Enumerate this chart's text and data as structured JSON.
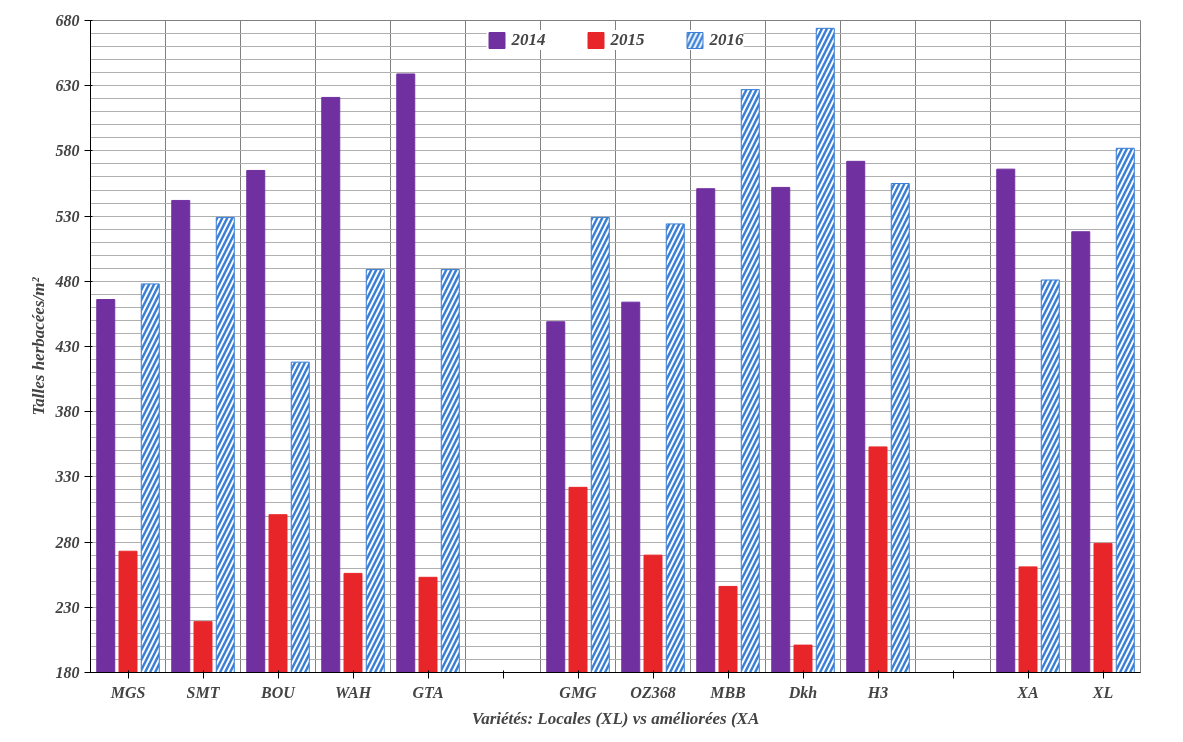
{
  "chart_data": {
    "type": "bar",
    "xlabel": "Variétés: Locales (XL) vs améliorées (XA",
    "ylabel": "Talles herbacées/m²",
    "categories": [
      "MGS",
      "SMT",
      "BOU",
      "WAH",
      "GTA",
      null,
      "GMG",
      "OZ368",
      "MBB",
      "Dkh",
      "H3",
      null,
      "XA",
      "XL"
    ],
    "series": [
      {
        "name": "2014",
        "color": "#7030a0",
        "values": [
          466,
          542,
          565,
          621,
          639,
          null,
          449,
          464,
          551,
          552,
          572,
          null,
          566,
          518
        ]
      },
      {
        "name": "2015",
        "color": "#e8262a",
        "values": [
          273,
          219,
          301,
          256,
          253,
          null,
          322,
          270,
          246,
          201,
          353,
          null,
          261,
          279
        ]
      },
      {
        "name": "2016",
        "color": "#3a7fd5",
        "values": [
          478,
          529,
          418,
          489,
          489,
          null,
          529,
          524,
          627,
          674,
          555,
          null,
          481,
          582
        ]
      }
    ],
    "ylim": [
      180,
      680
    ],
    "yticks": [
      180,
      230,
      280,
      330,
      380,
      430,
      480,
      530,
      580,
      630,
      680
    ],
    "grid": true,
    "legend": "top"
  }
}
